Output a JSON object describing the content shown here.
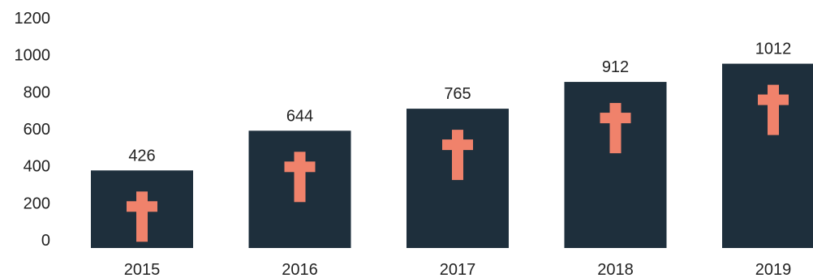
{
  "chart_data": {
    "type": "bar",
    "categories": [
      "2015",
      "2016",
      "2017",
      "2018",
      "2019"
    ],
    "values": [
      426,
      644,
      765,
      912,
      1012
    ],
    "data_labels": [
      "426",
      "644",
      "765",
      "912",
      "1012"
    ],
    "y_ticks": [
      0,
      200,
      400,
      600,
      800,
      1000,
      1200
    ],
    "y_tick_labels": [
      "0",
      "200",
      "400",
      "600",
      "800",
      "1000",
      "1200"
    ],
    "ylim": [
      0,
      1200
    ],
    "grid": false,
    "legend": "none",
    "bar_icon": "cross-icon",
    "colors": {
      "bar": "#1e2f3c",
      "icon": "#f0826b",
      "text": "#222222"
    }
  }
}
